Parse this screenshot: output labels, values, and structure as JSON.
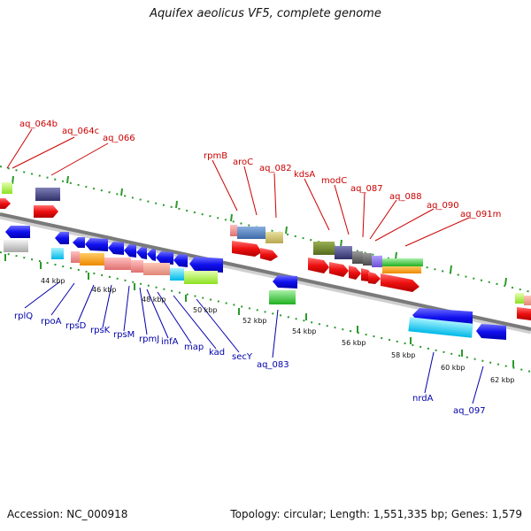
{
  "title": "Aquifex aeolicus VF5, complete genome",
  "footer": {
    "accession": "Accession: NC_000918",
    "stats": "Topology: circular; Length: 1,551,335 bp; Genes: 1,579"
  },
  "colors": {
    "top_labels": "#cc0000",
    "bottom_labels": "#0000aa",
    "backbone": "#8c8c8c",
    "ticks": "#2a9a2a"
  },
  "top_gene_labels": [
    "aq_064b",
    "aq_064c",
    "aq_066",
    "rpmB",
    "aroC",
    "aq_082",
    "kdsA",
    "modC",
    "aq_087",
    "aq_088",
    "aq_090",
    "aq_091m"
  ],
  "bottom_gene_labels": [
    "rplQ",
    "rpoA",
    "rpsD",
    "rpsK",
    "rpsM",
    "rpmJ",
    "infA",
    "map",
    "kad",
    "secY",
    "aq_083",
    "nrdA",
    "aq_097"
  ],
  "kbp_labels": [
    "44 kbp",
    "46 kbp",
    "48 kbp",
    "50 kbp",
    "52 kbp",
    "54 kbp",
    "56 kbp",
    "58 kbp",
    "60 kbp",
    "62 kbp"
  ]
}
